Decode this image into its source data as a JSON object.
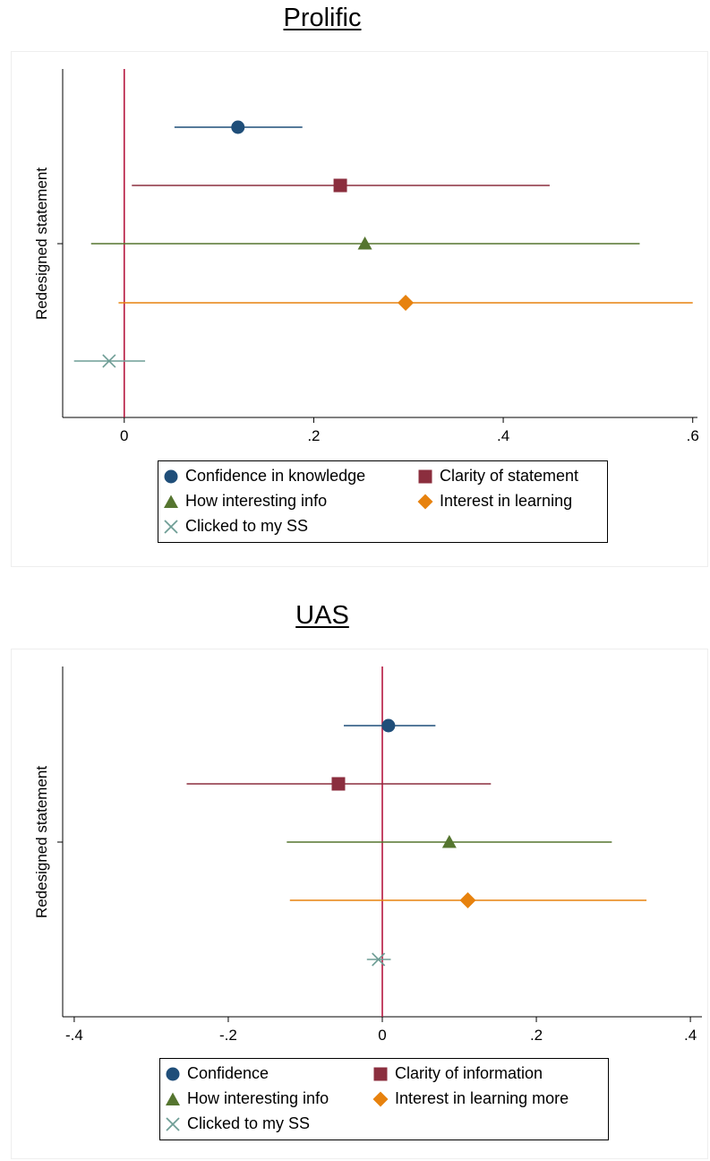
{
  "chart_data": [
    {
      "type": "coefficient-plot",
      "title": "Prolific",
      "ylabel": "Redesigned statement",
      "xlim": [
        -0.065,
        0.605
      ],
      "xticks": [
        0,
        0.2,
        0.4,
        0.6
      ],
      "xtick_labels": [
        "0",
        ".2",
        ".4",
        ".6"
      ],
      "reference_line": 0,
      "legend_position": "bottom",
      "series": [
        {
          "name": "Confidence in knowledge",
          "marker": "circle",
          "color": "#1f4e79",
          "estimate": 0.12,
          "ci": [
            0.053,
            0.188
          ]
        },
        {
          "name": "Clarity of statement",
          "marker": "square",
          "color": "#8b2e3e",
          "estimate": 0.228,
          "ci": [
            0.008,
            0.449
          ]
        },
        {
          "name": "How interesting info",
          "marker": "triangle",
          "color": "#55752f",
          "estimate": 0.254,
          "ci": [
            -0.035,
            0.544
          ]
        },
        {
          "name": "Interest in learning",
          "marker": "diamond",
          "color": "#e7820e",
          "estimate": 0.297,
          "ci": [
            -0.006,
            0.6
          ]
        },
        {
          "name": "Clicked to my SS",
          "marker": "x",
          "color": "#6f9e96",
          "estimate": -0.016,
          "ci": [
            -0.053,
            0.022
          ]
        }
      ]
    },
    {
      "type": "coefficient-plot",
      "title": "UAS",
      "ylabel": "Redesigned statement",
      "xlim": [
        -0.415,
        0.415
      ],
      "xticks": [
        -0.4,
        -0.2,
        0,
        0.2,
        0.4
      ],
      "xtick_labels": [
        "-.4",
        "-.2",
        "0",
        ".2",
        ".4"
      ],
      "reference_line": 0,
      "legend_position": "bottom",
      "series": [
        {
          "name": "Confidence",
          "marker": "circle",
          "color": "#1f4e79",
          "estimate": 0.008,
          "ci": [
            -0.05,
            0.069
          ]
        },
        {
          "name": "Clarity of information",
          "marker": "square",
          "color": "#8b2e3e",
          "estimate": -0.057,
          "ci": [
            -0.254,
            0.141
          ]
        },
        {
          "name": "How interesting info",
          "marker": "triangle",
          "color": "#55752f",
          "estimate": 0.087,
          "ci": [
            -0.124,
            0.298
          ]
        },
        {
          "name": "Interest in learning more",
          "marker": "diamond",
          "color": "#e7820e",
          "estimate": 0.111,
          "ci": [
            -0.12,
            0.343
          ]
        },
        {
          "name": "Clicked to my SS",
          "marker": "x",
          "color": "#6f9e96",
          "estimate": -0.005,
          "ci": [
            -0.02,
            0.011
          ]
        }
      ]
    }
  ],
  "colors": {
    "reference_line": "#b5173f"
  }
}
